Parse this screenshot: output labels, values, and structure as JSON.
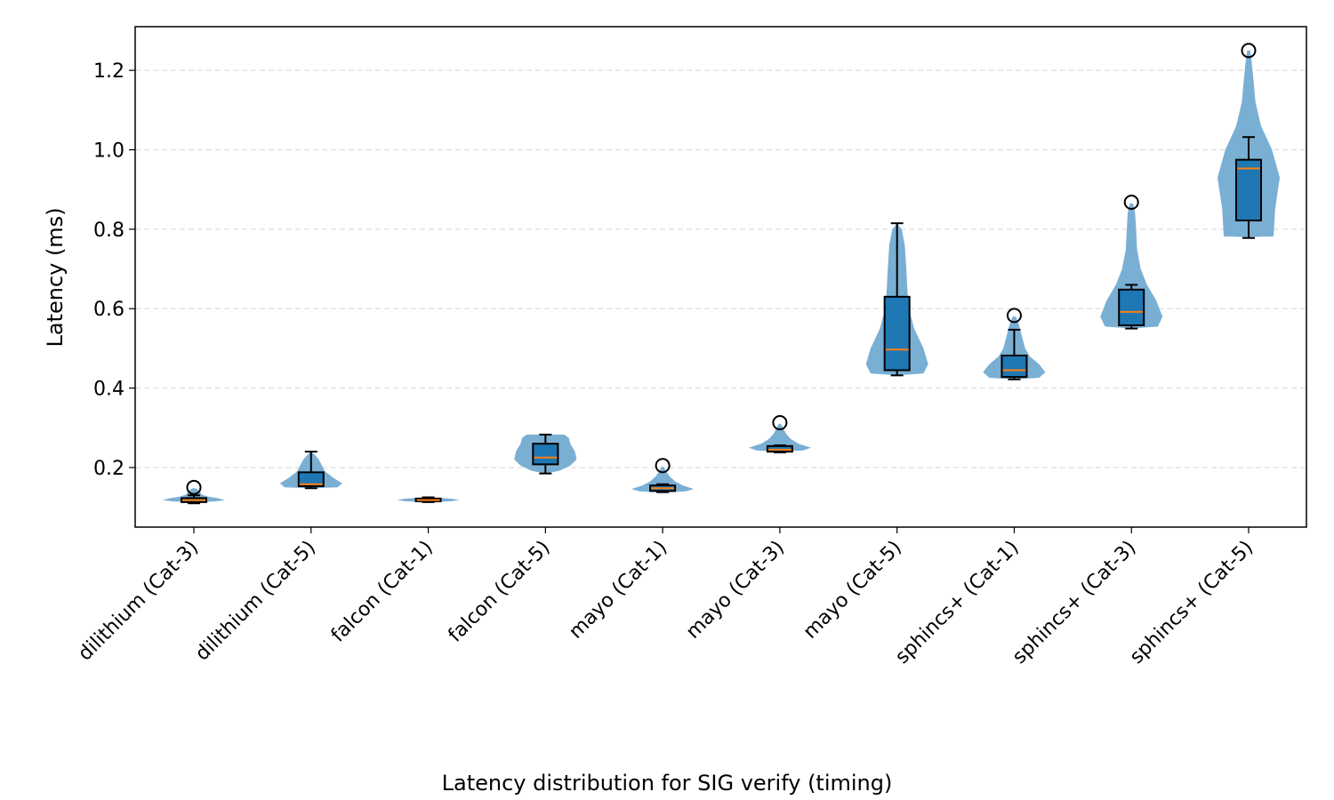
{
  "chart_data": {
    "type": "violin",
    "caption": "Latency distribution for SIG verify (timing)",
    "xlabel": "",
    "ylabel": "Latency (ms)",
    "ylim": [
      0.05,
      1.31
    ],
    "yticks": [
      0.2,
      0.4,
      0.6,
      0.8,
      1.0,
      1.2
    ],
    "ytick_labels": [
      "0.2",
      "0.4",
      "0.6",
      "0.8",
      "1.0",
      "1.2"
    ],
    "grid": "y-dashed",
    "categories": [
      "dilithium (Cat-3)",
      "dilithium (Cat-5)",
      "falcon (Cat-1)",
      "falcon (Cat-5)",
      "mayo (Cat-1)",
      "mayo (Cat-3)",
      "mayo (Cat-5)",
      "sphincs+ (Cat-1)",
      "sphincs+ (Cat-3)",
      "sphincs+ (Cat-5)"
    ],
    "colors": {
      "violin": "#7aafd4",
      "box": "#1f77b4",
      "median": "#ff7f0e",
      "grid": "#dddddd"
    },
    "stats": [
      {
        "min": 0.11,
        "q1": 0.113,
        "median": 0.118,
        "q3": 0.123,
        "whisker_high": 0.13,
        "outliers": [
          0.15
        ],
        "violin": [
          [
            0.112,
            0.0
          ],
          [
            0.115,
            0.7
          ],
          [
            0.118,
            1.0
          ],
          [
            0.122,
            0.8
          ],
          [
            0.127,
            0.45
          ],
          [
            0.132,
            0.25
          ],
          [
            0.14,
            0.18
          ],
          [
            0.148,
            0.05
          ]
        ]
      },
      {
        "min": 0.148,
        "q1": 0.153,
        "median": 0.158,
        "q3": 0.188,
        "whisker_high": 0.24,
        "outliers": [],
        "violin": [
          [
            0.148,
            0.0
          ],
          [
            0.15,
            0.85
          ],
          [
            0.16,
            1.0
          ],
          [
            0.175,
            0.7
          ],
          [
            0.19,
            0.45
          ],
          [
            0.205,
            0.35
          ],
          [
            0.22,
            0.25
          ],
          [
            0.232,
            0.12
          ],
          [
            0.24,
            0.0
          ]
        ]
      },
      {
        "min": 0.113,
        "q1": 0.115,
        "median": 0.118,
        "q3": 0.122,
        "whisker_high": 0.125,
        "outliers": [],
        "violin": [
          [
            0.113,
            0.0
          ],
          [
            0.115,
            0.7
          ],
          [
            0.118,
            1.0
          ],
          [
            0.121,
            0.8
          ],
          [
            0.123,
            0.5
          ],
          [
            0.125,
            0.0
          ]
        ]
      },
      {
        "min": 0.185,
        "q1": 0.208,
        "median": 0.225,
        "q3": 0.26,
        "whisker_high": 0.283,
        "outliers": [],
        "violin": [
          [
            0.185,
            0.0
          ],
          [
            0.192,
            0.45
          ],
          [
            0.205,
            0.8
          ],
          [
            0.22,
            1.0
          ],
          [
            0.24,
            0.95
          ],
          [
            0.26,
            0.8
          ],
          [
            0.275,
            0.75
          ],
          [
            0.283,
            0.6
          ]
        ]
      },
      {
        "min": 0.138,
        "q1": 0.141,
        "median": 0.148,
        "q3": 0.155,
        "whisker_high": 0.158,
        "outliers": [
          0.205
        ],
        "violin": [
          [
            0.137,
            0.0
          ],
          [
            0.14,
            0.75
          ],
          [
            0.146,
            1.0
          ],
          [
            0.155,
            0.65
          ],
          [
            0.165,
            0.4
          ],
          [
            0.178,
            0.22
          ],
          [
            0.192,
            0.1
          ],
          [
            0.202,
            0.03
          ]
        ]
      },
      {
        "min": 0.238,
        "q1": 0.24,
        "median": 0.245,
        "q3": 0.254,
        "whisker_high": 0.256,
        "outliers": [
          0.313
        ],
        "violin": [
          [
            0.24,
            0.0
          ],
          [
            0.243,
            0.75
          ],
          [
            0.25,
            1.0
          ],
          [
            0.26,
            0.6
          ],
          [
            0.272,
            0.35
          ],
          [
            0.285,
            0.2
          ],
          [
            0.298,
            0.12
          ],
          [
            0.31,
            0.03
          ]
        ]
      },
      {
        "min": 0.432,
        "q1": 0.445,
        "median": 0.497,
        "q3": 0.63,
        "whisker_high": 0.815,
        "outliers": [],
        "violin": [
          [
            0.432,
            0.0
          ],
          [
            0.437,
            0.85
          ],
          [
            0.46,
            1.0
          ],
          [
            0.5,
            0.85
          ],
          [
            0.55,
            0.55
          ],
          [
            0.6,
            0.38
          ],
          [
            0.65,
            0.33
          ],
          [
            0.7,
            0.3
          ],
          [
            0.76,
            0.25
          ],
          [
            0.8,
            0.15
          ],
          [
            0.815,
            0.0
          ]
        ]
      },
      {
        "min": 0.422,
        "q1": 0.428,
        "median": 0.445,
        "q3": 0.482,
        "whisker_high": 0.547,
        "outliers": [
          0.583
        ],
        "violin": [
          [
            0.422,
            0.0
          ],
          [
            0.426,
            0.8
          ],
          [
            0.44,
            1.0
          ],
          [
            0.46,
            0.8
          ],
          [
            0.48,
            0.5
          ],
          [
            0.5,
            0.35
          ],
          [
            0.53,
            0.25
          ],
          [
            0.56,
            0.15
          ],
          [
            0.58,
            0.05
          ]
        ]
      },
      {
        "min": 0.55,
        "q1": 0.558,
        "median": 0.592,
        "q3": 0.648,
        "whisker_high": 0.66,
        "outliers": [
          0.868
        ],
        "violin": [
          [
            0.55,
            0.0
          ],
          [
            0.555,
            0.85
          ],
          [
            0.58,
            1.0
          ],
          [
            0.62,
            0.8
          ],
          [
            0.66,
            0.5
          ],
          [
            0.7,
            0.3
          ],
          [
            0.75,
            0.18
          ],
          [
            0.8,
            0.15
          ],
          [
            0.84,
            0.12
          ],
          [
            0.865,
            0.05
          ]
        ]
      },
      {
        "min": 0.778,
        "q1": 0.822,
        "median": 0.953,
        "q3": 0.975,
        "whisker_high": 1.032,
        "outliers": [
          1.25
        ],
        "violin": [
          [
            0.78,
            0.0
          ],
          [
            0.782,
            0.8
          ],
          [
            0.85,
            0.85
          ],
          [
            0.93,
            1.0
          ],
          [
            1.0,
            0.75
          ],
          [
            1.06,
            0.4
          ],
          [
            1.12,
            0.22
          ],
          [
            1.18,
            0.15
          ],
          [
            1.22,
            0.1
          ],
          [
            1.25,
            0.05
          ]
        ]
      }
    ]
  }
}
